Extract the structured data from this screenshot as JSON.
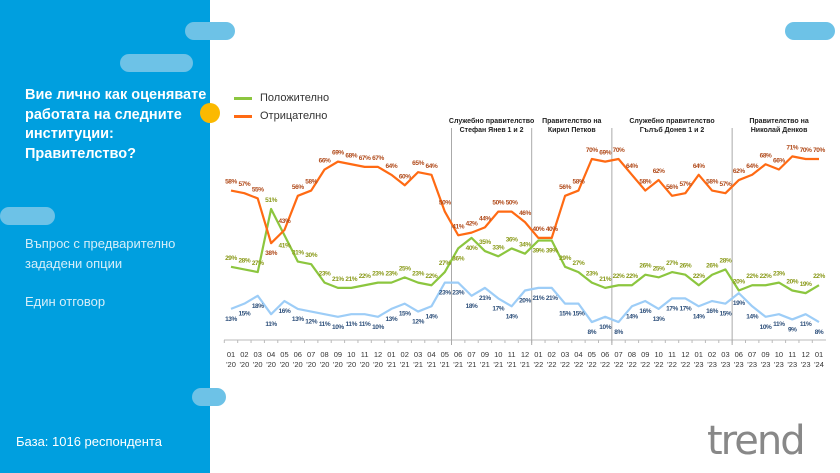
{
  "left_panel": {
    "question": "Вие лично как оценявате работата на следните институции: Правителство?",
    "question_type": "Въпрос с предварително зададени опции",
    "answer_type": "Един отговор",
    "base": "База:  1016 респондента"
  },
  "logo_text": "trend",
  "colors": {
    "panel": "#009fdf",
    "positive": "#8cc63f",
    "negative": "#ff6a13",
    "other": "#9dcdf7",
    "accent_dot": "#fbb900"
  },
  "periods": [
    {
      "line1": "Служебно правителство",
      "line2": "Стефан Янев 1 и 2",
      "start_index": 17
    },
    {
      "line1": "Правителство на",
      "line2": "Кирил Петков",
      "start_index": 23
    },
    {
      "line1": "Служебно правителство",
      "line2": "Гълъб Донев 1 и 2",
      "start_index": 29
    },
    {
      "line1": "Правителство на",
      "line2": "Николай Денков",
      "start_index": 38
    }
  ],
  "chart_data": {
    "type": "line",
    "title": "",
    "xlabel": "",
    "ylabel": "",
    "ylim": [
      0,
      80
    ],
    "grid": false,
    "legend_position": "top-left",
    "categories": [
      "01 '20",
      "02 '20",
      "03 '20",
      "04 '20",
      "05 '20",
      "06 '20",
      "07 '20",
      "08 '20",
      "09 '20",
      "10 '20",
      "11 '20",
      "12 '20",
      "01 '21",
      "02 '21",
      "03 '21",
      "04 '21",
      "05 '21",
      "06 '21",
      "07 '21",
      "09 '21",
      "10 '21",
      "11 '21",
      "12 '21",
      "01 '22",
      "02 '22",
      "03 '22",
      "04 '22",
      "05 '22",
      "06 '22",
      "07 '22",
      "08 '22",
      "09 '22",
      "10 '22",
      "11 '22",
      "12 '22",
      "01 '23",
      "02 '23",
      "03 '23",
      "06 '23",
      "07 '23",
      "09 '23",
      "10 '23",
      "11 '23",
      "12 '23",
      "01 '24"
    ],
    "series": [
      {
        "name": "Положително",
        "key": "positive",
        "values": [
          29,
          28,
          27,
          51,
          41,
          31,
          30,
          23,
          21,
          21,
          22,
          23,
          23,
          25,
          23,
          22,
          27,
          36,
          40,
          35,
          33,
          36,
          34,
          39,
          39,
          29,
          27,
          23,
          21,
          22,
          22,
          26,
          25,
          27,
          26,
          22,
          26,
          28,
          20,
          22,
          22,
          23,
          20,
          19,
          22
        ]
      },
      {
        "name": "Отрицателно",
        "key": "negative",
        "values": [
          58,
          57,
          55,
          38,
          43,
          56,
          58,
          66,
          69,
          68,
          67,
          67,
          64,
          60,
          65,
          64,
          50,
          41,
          42,
          44,
          50,
          50,
          46,
          40,
          40,
          56,
          58,
          70,
          69,
          70,
          64,
          58,
          62,
          56,
          57,
          64,
          58,
          57,
          62,
          64,
          68,
          66,
          71,
          70,
          70
        ]
      },
      {
        "name": "",
        "key": "other",
        "values": [
          13,
          15,
          18,
          11,
          16,
          13,
          12,
          11,
          10,
          11,
          11,
          10,
          13,
          15,
          12,
          14,
          23,
          23,
          18,
          21,
          17,
          14,
          20,
          21,
          21,
          15,
          15,
          8,
          10,
          8,
          14,
          16,
          13,
          17,
          17,
          14,
          16,
          15,
          19,
          14,
          10,
          11,
          9,
          11,
          8
        ]
      }
    ]
  }
}
